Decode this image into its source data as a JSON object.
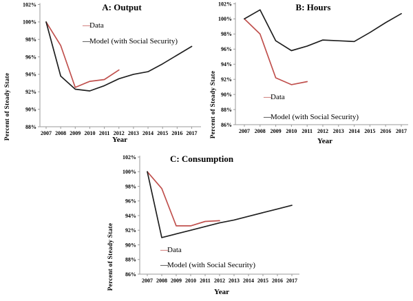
{
  "figure": {
    "background": "#ffffff",
    "description_visible_text_only": true
  },
  "colors": {
    "data_series": "#c0504d",
    "model_series": "#1f1f1f",
    "axis": "#9a9a9a",
    "text": "#000000"
  },
  "chart_data": [
    {
      "type": "line",
      "title": "A: Output",
      "xlabel": "Year",
      "ylabel": "Percent of Steady State",
      "x": [
        2007,
        2008,
        2009,
        2010,
        2011,
        2012,
        2013,
        2014,
        2015,
        2016,
        2017
      ],
      "ylim": [
        88,
        102
      ],
      "ytick_step": 2,
      "ytick_suffix": "%",
      "grid": false,
      "legend_position": "inside-upper-middle",
      "series": [
        {
          "name": "Data",
          "color_key": "data_series",
          "values": [
            100,
            97.3,
            92.5,
            93.2,
            93.4,
            94.5
          ]
        },
        {
          "name": "Model (with Social Security)",
          "color_key": "model_series",
          "values": [
            100,
            93.8,
            92.3,
            92.1,
            92.7,
            93.5,
            94.0,
            94.3,
            95.2,
            96.2,
            97.2
          ]
        }
      ]
    },
    {
      "type": "line",
      "title": "B: Hours",
      "xlabel": "Year",
      "ylabel": "Percent of Steady State",
      "x": [
        2007,
        2008,
        2009,
        2010,
        2011,
        2012,
        2013,
        2014,
        2015,
        2016,
        2017
      ],
      "ylim": [
        86,
        102
      ],
      "ytick_step": 2,
      "ytick_suffix": "%",
      "grid": false,
      "legend_position": "inside-lower-left",
      "series": [
        {
          "name": "Data",
          "color_key": "data_series",
          "values": [
            100,
            98.0,
            92.2,
            91.3,
            91.7
          ]
        },
        {
          "name": "Model (with Social Security)",
          "color_key": "model_series",
          "values": [
            100,
            101.2,
            97.1,
            95.8,
            96.4,
            97.2,
            97.1,
            97.0,
            98.2,
            99.5,
            100.7
          ]
        }
      ]
    },
    {
      "type": "line",
      "title": "C: Consumption",
      "xlabel": "Year",
      "ylabel": "Percent of Steady State",
      "x": [
        2007,
        2008,
        2009,
        2010,
        2011,
        2012,
        2013,
        2014,
        2015,
        2016,
        2017
      ],
      "ylim": [
        86,
        102
      ],
      "ytick_step": 2,
      "ytick_suffix": "%",
      "grid": false,
      "legend_position": "inside-lower-left",
      "series": [
        {
          "name": "Data",
          "color_key": "data_series",
          "values": [
            100,
            97.7,
            92.6,
            92.6,
            93.2,
            93.3
          ]
        },
        {
          "name": "Model (with Social Security)",
          "color_key": "model_series",
          "values": [
            100,
            91.0,
            91.5,
            92.0,
            92.5,
            93.0,
            93.4,
            93.9,
            94.4,
            94.9,
            95.4
          ]
        }
      ]
    }
  ]
}
